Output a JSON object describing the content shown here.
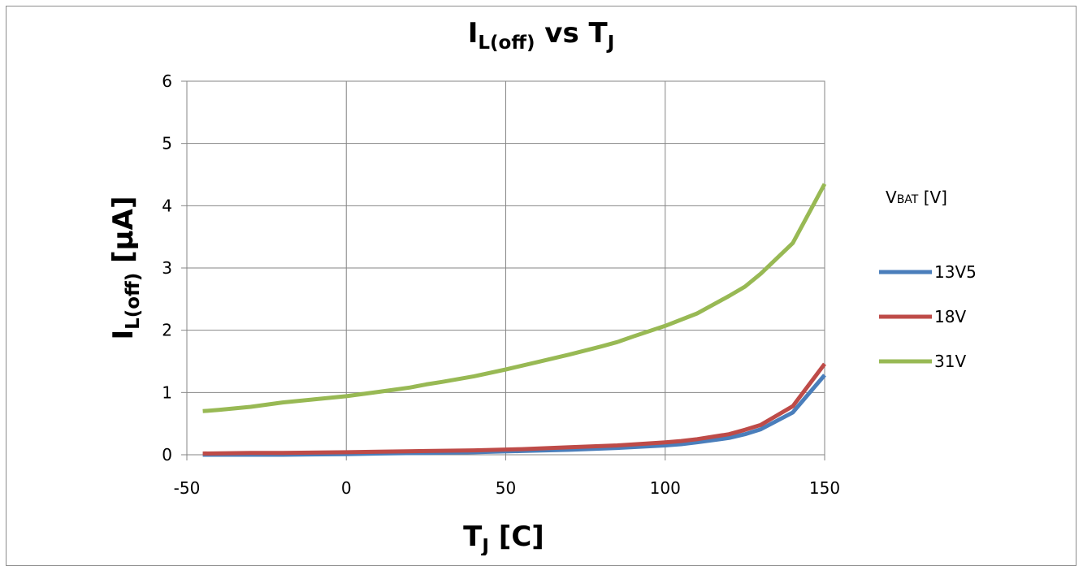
{
  "chart_data": {
    "type": "line",
    "title": {
      "main": "I",
      "sub": "L(off)",
      "mid": " vs T",
      "sub2": "J"
    },
    "xlabel": {
      "main": "T",
      "sub": "J",
      "rest": " [C]"
    },
    "ylabel": {
      "main": "I",
      "sub": "L(off)",
      "rest": " [µA]"
    },
    "xlim": [
      -50,
      150
    ],
    "ylim": [
      0,
      6
    ],
    "xticks": [
      -50,
      0,
      50,
      100,
      150
    ],
    "yticks": [
      0,
      1,
      2,
      3,
      4,
      5,
      6
    ],
    "grid": true,
    "legend": {
      "placement": "right",
      "title_main": "V",
      "title_sub": "BAT",
      "title_rest": " [V]"
    },
    "series": [
      {
        "name": "13V5",
        "color": "#4a7ebb",
        "x": [
          -45,
          -30,
          -20,
          0,
          10,
          25,
          40,
          55,
          70,
          85,
          100,
          105,
          110,
          120,
          125,
          130,
          140,
          150
        ],
        "y": [
          0.0,
          0.0,
          0.0,
          0.01,
          0.02,
          0.03,
          0.04,
          0.06,
          0.08,
          0.11,
          0.15,
          0.17,
          0.2,
          0.27,
          0.33,
          0.41,
          0.68,
          1.28
        ]
      },
      {
        "name": "18V",
        "color": "#be4b48",
        "x": [
          -45,
          -30,
          -20,
          0,
          10,
          25,
          40,
          55,
          70,
          85,
          100,
          105,
          110,
          120,
          125,
          130,
          140,
          150
        ],
        "y": [
          0.02,
          0.03,
          0.03,
          0.04,
          0.05,
          0.06,
          0.07,
          0.09,
          0.12,
          0.15,
          0.2,
          0.22,
          0.25,
          0.33,
          0.4,
          0.48,
          0.78,
          1.46
        ]
      },
      {
        "name": "31V",
        "color": "#98b954",
        "x": [
          -45,
          -40,
          -30,
          -20,
          -10,
          0,
          10,
          20,
          25,
          30,
          40,
          50,
          60,
          70,
          80,
          85,
          90,
          100,
          110,
          120,
          125,
          130,
          140,
          150
        ],
        "y": [
          0.7,
          0.72,
          0.77,
          0.84,
          0.89,
          0.94,
          1.01,
          1.08,
          1.13,
          1.17,
          1.26,
          1.37,
          1.49,
          1.61,
          1.74,
          1.81,
          1.9,
          2.07,
          2.27,
          2.55,
          2.7,
          2.91,
          3.4,
          4.35
        ]
      }
    ]
  }
}
